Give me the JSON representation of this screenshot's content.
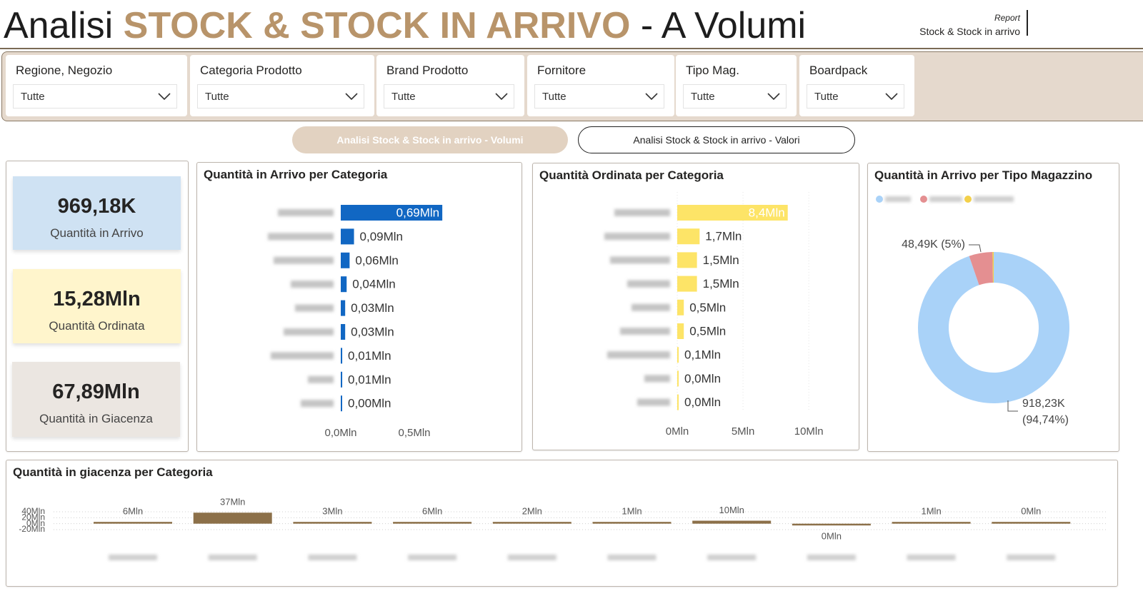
{
  "header": {
    "title_start": "Analisi",
    "title_highlight": "STOCK & STOCK IN ARRIVO",
    "title_end": "- A Volumi",
    "report_label": "Report",
    "report_name": "Stock & Stock in arrivo"
  },
  "filters": [
    {
      "label": "Regione, Negozio",
      "value": "Tutte"
    },
    {
      "label": "Categoria Prodotto",
      "value": "Tutte"
    },
    {
      "label": "Brand Prodotto",
      "value": "Tutte"
    },
    {
      "label": "Fornitore",
      "value": "Tutte"
    },
    {
      "label": "Tipo Mag.",
      "value": "Tutte"
    },
    {
      "label": "Boardpack",
      "value": "Tutte"
    }
  ],
  "tabs": [
    "Analisi Stock & Stock in arrivo - Volumi",
    "Analisi Stock & Stock in arrivo - Valori"
  ],
  "kpis": [
    {
      "value": "969,18K",
      "label": "Quantità in Arrivo"
    },
    {
      "value": "15,28Mln",
      "label": "Quantità Ordinata"
    },
    {
      "value": "67,89Mln",
      "label": "Quantità in Giacenza"
    }
  ],
  "chart_data": [
    {
      "type": "hbar",
      "title": "Quantità in Arrivo per Categoria",
      "categories": [
        null,
        null,
        null,
        null,
        null,
        null,
        null,
        null,
        null
      ],
      "values": [
        0.69,
        0.09,
        0.06,
        0.04,
        0.03,
        0.03,
        0.01,
        0.01,
        0.0
      ],
      "value_labels": [
        "0,69Mln",
        "0,09Mln",
        "0,06Mln",
        "0,04Mln",
        "0,03Mln",
        "0,03Mln",
        "0,01Mln",
        "0,01Mln",
        "0,00Mln"
      ],
      "color": "#1167c3",
      "xlim": [
        0,
        1
      ],
      "xticks": [
        {
          "value": 0,
          "label": "0,0Mln"
        },
        {
          "value": 0.5,
          "label": "0,5Mln"
        }
      ],
      "grid": false
    },
    {
      "type": "hbar",
      "title": "Quantità Ordinata per Categoria",
      "categories": [
        null,
        null,
        null,
        null,
        null,
        null,
        null,
        null,
        null
      ],
      "values": [
        8.4,
        1.7,
        1.5,
        1.5,
        0.5,
        0.5,
        0.1,
        0.0,
        0.0
      ],
      "value_labels": [
        "8,4Mln",
        "1,7Mln",
        "1,5Mln",
        "1,5Mln",
        "0,5Mln",
        "0,5Mln",
        "0,1Mln",
        "0,0Mln",
        "0,0Mln"
      ],
      "color": "#fde467",
      "xlim": [
        0,
        12
      ],
      "xticks": [
        {
          "value": 0,
          "label": "0Mln"
        },
        {
          "value": 5,
          "label": "5Mln"
        },
        {
          "value": 10,
          "label": "10Mln"
        }
      ],
      "grid": true
    },
    {
      "type": "donut",
      "title": "Quantità in Arrivo per Tipo Magazzino",
      "categories": [
        null,
        null,
        null
      ],
      "values": [
        918.23,
        48.49,
        2.46
      ],
      "value_labels": [
        "918,23K (94,74%)",
        "48,49K (5%)",
        null
      ],
      "colors": [
        "#a9d2f8",
        "#e48f91",
        "#f3d04a"
      ]
    },
    {
      "type": "column",
      "title": "Quantità in giacenza per Categoria",
      "categories": [
        null,
        null,
        null,
        null,
        null,
        null,
        null,
        null,
        null,
        null
      ],
      "values": [
        6,
        37,
        3,
        6,
        2,
        1,
        10,
        -0.1,
        1,
        0
      ],
      "value_labels": [
        "6Mln",
        "37Mln",
        "3Mln",
        "6Mln",
        "2Mln",
        "1Mln",
        "10Mln",
        "0Mln",
        "1Mln",
        "0Mln"
      ],
      "color": "#8c7049",
      "ylim": [
        -20,
        40
      ],
      "yticks": [
        {
          "value": 40,
          "label": "40Mln"
        },
        {
          "value": 20,
          "label": "20Mln"
        },
        {
          "value": 0,
          "label": "0Mln"
        },
        {
          "value": -20,
          "label": "-20Mln"
        }
      ],
      "grid": true
    }
  ]
}
